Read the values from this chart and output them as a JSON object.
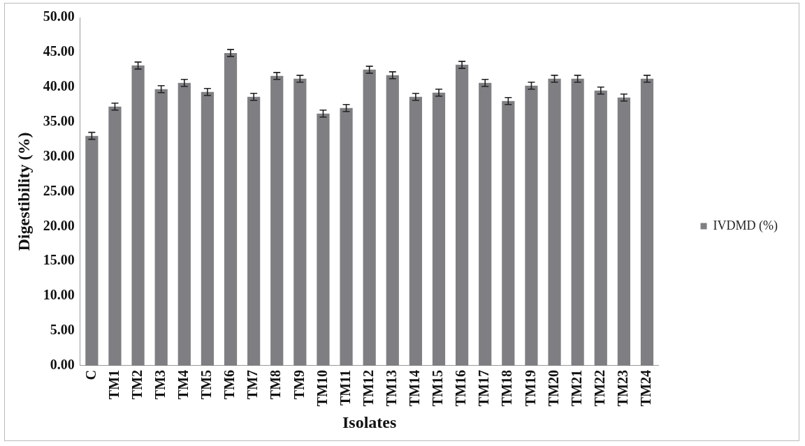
{
  "chart_data": {
    "type": "bar",
    "xlabel": "Isolates",
    "ylabel": "Digestibility (%)",
    "categories": [
      "C",
      "TM1",
      "TM2",
      "TM3",
      "TM4",
      "TM5",
      "TM6",
      "TM7",
      "TM8",
      "TM9",
      "TM10",
      "TM11",
      "TM12",
      "TM13",
      "TM14",
      "TM15",
      "TM16",
      "TM17",
      "TM18",
      "TM19",
      "TM20",
      "TM21",
      "TM22",
      "TM23",
      "TM24"
    ],
    "series": [
      {
        "name": "IVDMD (%)",
        "color": "#7f7f83",
        "values": [
          33.0,
          37.2,
          43.1,
          39.7,
          40.6,
          39.3,
          44.9,
          38.6,
          41.6,
          41.2,
          36.2,
          37.0,
          42.5,
          41.7,
          38.6,
          39.2,
          43.2,
          40.6,
          38.0,
          40.2,
          41.2,
          41.2,
          39.5,
          38.5,
          41.2
        ],
        "errors": [
          0.5,
          0.5,
          0.5,
          0.5,
          0.5,
          0.5,
          0.5,
          0.5,
          0.5,
          0.5,
          0.5,
          0.5,
          0.5,
          0.5,
          0.5,
          0.5,
          0.5,
          0.5,
          0.5,
          0.5,
          0.5,
          0.5,
          0.5,
          0.5,
          0.5
        ]
      }
    ],
    "ylim": [
      0,
      50
    ],
    "yticks": [
      {
        "value": 0,
        "label": "0.00"
      },
      {
        "value": 5,
        "label": "5.00"
      },
      {
        "value": 10,
        "label": "10.00"
      },
      {
        "value": 15,
        "label": "15.00"
      },
      {
        "value": 20,
        "label": "20.00"
      },
      {
        "value": 25,
        "label": "25.00"
      },
      {
        "value": 30,
        "label": "30.00"
      },
      {
        "value": 35,
        "label": "35.00"
      },
      {
        "value": 40,
        "label": "40.00"
      },
      {
        "value": 45,
        "label": "45.00"
      },
      {
        "value": 50,
        "label": "50.00"
      }
    ],
    "grid": false,
    "legend": "right"
  }
}
